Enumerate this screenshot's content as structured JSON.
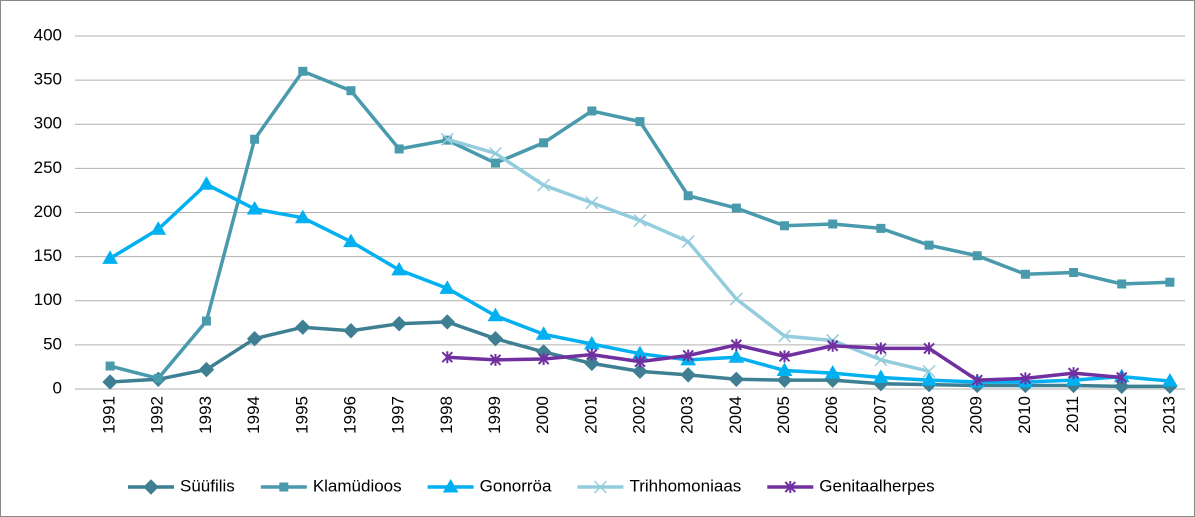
{
  "chart_data": {
    "type": "line",
    "categories": [
      "1991",
      "1992",
      "1993",
      "1994",
      "1995",
      "1996",
      "1997",
      "1998",
      "1999",
      "2000",
      "2001",
      "2002",
      "2003",
      "2004",
      "2005",
      "2006",
      "2007",
      "2008",
      "2009",
      "2010",
      "2011",
      "2012",
      "2013"
    ],
    "series": [
      {
        "name": "Süüfilis",
        "color": "#3f7f93",
        "marker": "diamond",
        "values": [
          8,
          11,
          22,
          57,
          70,
          66,
          74,
          76,
          57,
          42,
          29,
          20,
          16,
          11,
          10,
          10,
          6,
          5,
          4,
          4,
          4,
          3,
          3
        ]
      },
      {
        "name": "Klamüdioos",
        "color": "#4a9aad",
        "marker": "square",
        "values": [
          26,
          12,
          77,
          283,
          360,
          338,
          272,
          282,
          256,
          279,
          315,
          303,
          219,
          205,
          185,
          187,
          182,
          163,
          151,
          130,
          132,
          119,
          121
        ]
      },
      {
        "name": "Gonorröa",
        "color": "#00b0f0",
        "marker": "triangle",
        "values": [
          148,
          181,
          232,
          204,
          194,
          167,
          135,
          114,
          83,
          62,
          51,
          40,
          33,
          36,
          21,
          18,
          13,
          10,
          8,
          8,
          10,
          14,
          9
        ]
      },
      {
        "name": "Trihhomoniaas",
        "color": "#93cddd",
        "marker": "x",
        "values": [
          null,
          null,
          null,
          null,
          null,
          null,
          null,
          283,
          267,
          231,
          211,
          191,
          167,
          102,
          60,
          55,
          33,
          20,
          null,
          null,
          null,
          null,
          null
        ]
      },
      {
        "name": "Genitaalherpes",
        "color": "#7030a0",
        "marker": "star",
        "values": [
          null,
          null,
          null,
          null,
          null,
          null,
          null,
          36,
          33,
          34,
          39,
          31,
          38,
          50,
          37,
          49,
          46,
          46,
          10,
          12,
          18,
          13,
          null
        ]
      }
    ],
    "ylim": [
      0,
      400
    ],
    "yticks": [
      0,
      50,
      100,
      150,
      200,
      250,
      300,
      350,
      400
    ],
    "grid": true,
    "legend": "bottom"
  }
}
